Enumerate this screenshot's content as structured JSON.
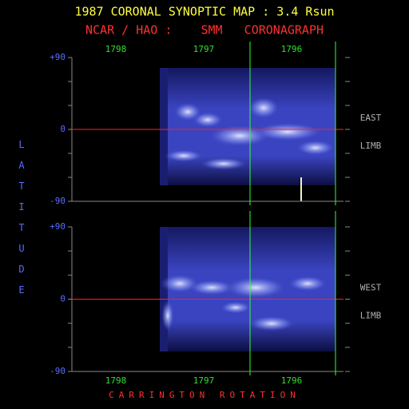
{
  "header": {
    "title": "1987 CORONAL SYNOPTIC MAP : 3.4 Rsun",
    "subtitle": "NCAR / HAO :    SMM   CORONAGRAPH"
  },
  "y_axis_label": "LATITUDE",
  "x_axis_label": "CARRINGTON ROTATION",
  "panels": [
    {
      "rotations": [
        "1798",
        "1797",
        "1796"
      ],
      "lat_labels": [
        "+90",
        "0",
        "-90"
      ],
      "limb": [
        "EAST",
        "LIMB"
      ]
    },
    {
      "rotations": [
        "1798",
        "1797",
        "1796"
      ],
      "lat_labels": [
        "+90",
        "0",
        "-90"
      ],
      "limb": [
        "WEST",
        "LIMB"
      ]
    }
  ]
}
